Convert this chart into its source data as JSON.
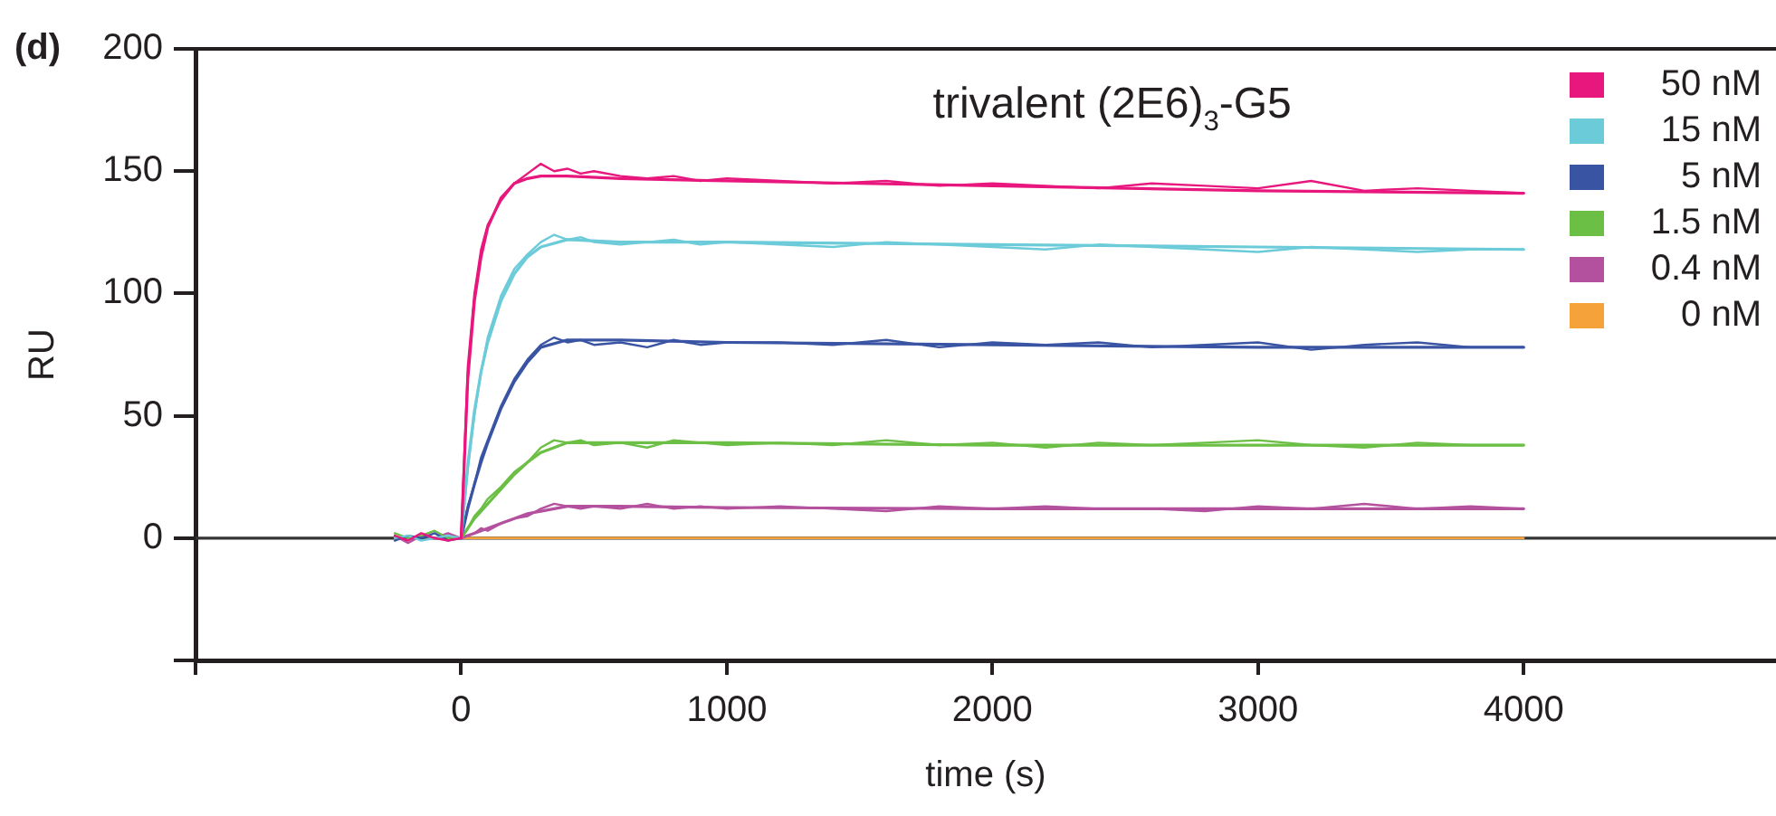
{
  "chart_data": {
    "type": "line",
    "title": "trivalent (2E6)$_{3}$-G5",
    "xlabel": "time (s)",
    "ylabel": "RU",
    "annotations": [
      "(d)"
    ],
    "xlim": [
      -1000,
      4950
    ],
    "xticks": [
      {
        "value": -1000,
        "label": null
      },
      0,
      1000,
      2000,
      3000,
      4000
    ],
    "ylim": [
      -50,
      200
    ],
    "yticks": [
      {
        "value": -50,
        "label": null
      },
      0,
      50,
      100,
      150,
      200
    ],
    "grid": false,
    "legend": "top right",
    "marker": "none",
    "line_style": "solid",
    "ref_lines": [
      {
        "axis": "y",
        "value": 0,
        "color": "#333333"
      }
    ],
    "series": [
      {
        "name": "50 nM",
        "color": "#e8177d",
        "x": [
          -250,
          -200,
          -150,
          -100,
          -50,
          0,
          25,
          50,
          75,
          100,
          150,
          200,
          250,
          300,
          350,
          400,
          450,
          500,
          600,
          700,
          800,
          900,
          1000,
          1200,
          1400,
          1600,
          1800,
          2000,
          2200,
          2400,
          2600,
          2800,
          3000,
          3200,
          3400,
          3600,
          3800,
          4000
        ],
        "values": [
          1,
          -1,
          2,
          0,
          -1,
          0,
          70,
          100,
          118,
          128,
          138,
          145,
          149,
          153,
          150,
          151,
          149,
          150,
          148,
          147,
          148,
          146,
          147,
          146,
          145,
          146,
          144,
          145,
          144,
          143,
          145,
          144,
          143,
          146,
          142,
          143,
          142,
          141
        ]
      },
      {
        "color": "#e8177d",
        "x": [
          0,
          25,
          50,
          75,
          100,
          150,
          200,
          250,
          300,
          400,
          600,
          1000,
          2000,
          3000,
          4000
        ],
        "values": [
          0,
          65,
          97,
          115,
          127,
          139,
          145,
          147,
          148,
          148,
          147,
          146,
          144,
          142,
          141
        ]
      },
      {
        "name": "15 nM",
        "color": "#6ccbd9",
        "x": [
          -250,
          -200,
          -150,
          -100,
          -50,
          0,
          25,
          50,
          75,
          100,
          150,
          200,
          250,
          300,
          350,
          400,
          450,
          500,
          600,
          700,
          800,
          900,
          1000,
          1200,
          1400,
          1600,
          1800,
          2000,
          2200,
          2400,
          2600,
          2800,
          3000,
          3200,
          3400,
          3600,
          3800,
          4000
        ],
        "values": [
          0,
          1,
          -1,
          0,
          1,
          0,
          28,
          50,
          68,
          82,
          99,
          110,
          116,
          121,
          124,
          122,
          123,
          121,
          120,
          121,
          122,
          120,
          121,
          120,
          119,
          121,
          120,
          119,
          118,
          120,
          119,
          118,
          117,
          119,
          118,
          117,
          118,
          118
        ]
      },
      {
        "color": "#6ccbd9",
        "x": [
          0,
          25,
          50,
          75,
          100,
          150,
          200,
          250,
          300,
          400,
          600,
          1000,
          2000,
          3000,
          4000
        ],
        "values": [
          0,
          30,
          52,
          68,
          80,
          97,
          108,
          115,
          119,
          122,
          121,
          121,
          120,
          119,
          118
        ]
      },
      {
        "name": "5 nM",
        "color": "#3a54a4",
        "x": [
          -250,
          -200,
          -150,
          -100,
          -50,
          0,
          25,
          50,
          75,
          100,
          150,
          200,
          250,
          300,
          350,
          400,
          450,
          500,
          600,
          700,
          800,
          900,
          1000,
          1200,
          1400,
          1600,
          1800,
          2000,
          2200,
          2400,
          2600,
          2800,
          3000,
          3200,
          3400,
          3600,
          3800,
          4000
        ],
        "values": [
          -1,
          1,
          0,
          2,
          -1,
          0,
          13,
          22,
          33,
          40,
          54,
          65,
          73,
          79,
          82,
          80,
          81,
          79,
          80,
          78,
          81,
          79,
          80,
          80,
          79,
          81,
          78,
          80,
          79,
          80,
          78,
          79,
          80,
          77,
          79,
          80,
          78,
          78
        ]
      },
      {
        "color": "#3a54a4",
        "x": [
          0,
          25,
          50,
          75,
          100,
          150,
          200,
          250,
          300,
          400,
          600,
          1000,
          2000,
          3000,
          4000
        ],
        "values": [
          0,
          12,
          22,
          31,
          39,
          53,
          64,
          72,
          78,
          81,
          81,
          80,
          79,
          78,
          78
        ]
      },
      {
        "name": "1.5 nM",
        "color": "#6cbf45",
        "x": [
          -250,
          -200,
          -150,
          -100,
          -50,
          0,
          25,
          50,
          75,
          100,
          150,
          200,
          250,
          300,
          350,
          400,
          450,
          500,
          600,
          700,
          800,
          900,
          1000,
          1200,
          1400,
          1600,
          1800,
          2000,
          2200,
          2400,
          2600,
          2800,
          3000,
          3200,
          3400,
          3600,
          3800,
          4000
        ],
        "values": [
          2,
          0,
          1,
          3,
          0,
          0,
          4,
          9,
          12,
          16,
          21,
          27,
          31,
          37,
          40,
          39,
          40,
          38,
          39,
          37,
          40,
          39,
          38,
          39,
          38,
          40,
          38,
          39,
          37,
          39,
          38,
          39,
          40,
          38,
          37,
          39,
          38,
          38
        ]
      },
      {
        "color": "#6cbf45",
        "x": [
          0,
          25,
          50,
          75,
          100,
          150,
          200,
          250,
          300,
          400,
          600,
          1000,
          2000,
          3000,
          4000
        ],
        "values": [
          0,
          4,
          8,
          11,
          14,
          20,
          26,
          31,
          35,
          39,
          39,
          39,
          38,
          38,
          38
        ]
      },
      {
        "name": "0.4 nM",
        "color": "#b4519e",
        "x": [
          -250,
          -200,
          -150,
          -100,
          -50,
          0,
          25,
          50,
          75,
          100,
          150,
          200,
          250,
          300,
          350,
          400,
          450,
          500,
          600,
          700,
          800,
          900,
          1000,
          1200,
          1400,
          1600,
          1800,
          2000,
          2200,
          2400,
          2600,
          2800,
          3000,
          3200,
          3400,
          3600,
          3800,
          4000
        ],
        "values": [
          1,
          -2,
          1,
          0,
          2,
          0,
          1,
          2,
          4,
          3,
          6,
          8,
          9,
          12,
          14,
          13,
          12,
          13,
          12,
          14,
          12,
          13,
          12,
          13,
          12,
          11,
          13,
          12,
          13,
          12,
          12,
          11,
          13,
          12,
          14,
          12,
          13,
          12
        ]
      },
      {
        "color": "#b4519e",
        "x": [
          0,
          25,
          50,
          75,
          100,
          150,
          200,
          250,
          300,
          400,
          600,
          1000,
          2000,
          3000,
          4000
        ],
        "values": [
          0,
          1,
          2,
          3,
          4,
          6,
          8,
          10,
          11,
          13,
          13,
          12.5,
          12,
          12,
          12
        ]
      },
      {
        "name": "0 nM",
        "color": "#f5a23b",
        "x": [
          0,
          1000,
          2000,
          3000,
          4000
        ],
        "values": [
          0,
          0,
          0,
          0,
          0
        ]
      }
    ]
  }
}
